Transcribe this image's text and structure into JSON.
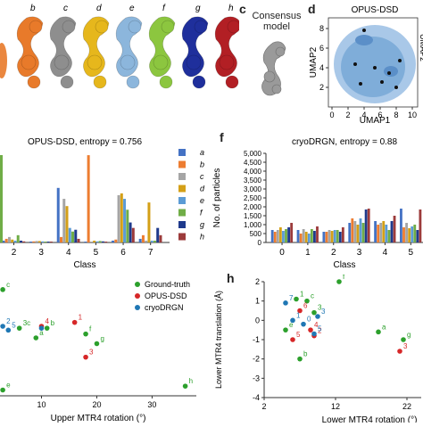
{
  "panel_labels": {
    "c": "c",
    "d": "d",
    "f": "f",
    "h": "h"
  },
  "maps": [
    {
      "letter": "b",
      "color": "#e87a2a"
    },
    {
      "letter": "c",
      "color": "#8e8e8e"
    },
    {
      "letter": "d",
      "color": "#e6b71c"
    },
    {
      "letter": "e",
      "color": "#8cb6dc"
    },
    {
      "letter": "f",
      "color": "#8cc63f"
    },
    {
      "letter": "g",
      "color": "#1f2f9c"
    },
    {
      "letter": "h",
      "color": "#b21f24"
    }
  ],
  "consensus": {
    "label": "Consensus\nmodel"
  },
  "umap": {
    "title": "OPUS-DSD",
    "xlabel": "UMAP1",
    "ylabel": "UMAP2",
    "ylabel_right": "UMAP2",
    "xticks": [
      "0",
      "2",
      "4",
      "6",
      "8",
      "10"
    ],
    "yticks": [
      "8",
      "6",
      "4",
      "2"
    ]
  },
  "legend_hist": [
    "a",
    "b",
    "c",
    "d",
    "e",
    "f",
    "g",
    "h"
  ],
  "legend_scatter": [
    "Ground-truth",
    "OPUS-DSD",
    "cryoDRGN"
  ],
  "chart_data": [
    {
      "type": "bar",
      "title": "OPUS-DSD, entropy = 0.756",
      "xlabel": "Class",
      "categories": [
        "2",
        "3",
        "4",
        "5",
        "6",
        "7"
      ],
      "series": [
        {
          "name": "a",
          "color": "#4472c4",
          "values": [
            5,
            1,
            150,
            2,
            5,
            10
          ]
        },
        {
          "name": "b",
          "color": "#ed7d31",
          "values": [
            10,
            3,
            15,
            240,
            8,
            20
          ]
        },
        {
          "name": "c",
          "color": "#a5a5a5",
          "values": [
            15,
            4,
            120,
            2,
            130,
            5
          ]
        },
        {
          "name": "d",
          "color": "#d4a017",
          "values": [
            8,
            4,
            100,
            5,
            135,
            110
          ]
        },
        {
          "name": "e",
          "color": "#5b9bd5",
          "values": [
            5,
            3,
            40,
            3,
            120,
            5
          ]
        },
        {
          "name": "f",
          "color": "#70ad47",
          "values": [
            20,
            2,
            30,
            4,
            90,
            5
          ]
        },
        {
          "name": "g",
          "color": "#1f3a8c",
          "values": [
            5,
            2,
            35,
            3,
            55,
            40
          ]
        },
        {
          "name": "h",
          "color": "#9c3b3b",
          "values": [
            3,
            1,
            10,
            2,
            40,
            20
          ]
        }
      ]
    },
    {
      "type": "bar",
      "title": "cryoDRGN, entropy = 0.88",
      "xlabel": "Class",
      "ylabel": "No. of particles",
      "ylim": [
        0,
        5000
      ],
      "yticks": [
        "0",
        "500",
        "1,000",
        "1,500",
        "2,000",
        "2,500",
        "3,000",
        "3,500",
        "4,000",
        "4,500",
        "5,000"
      ],
      "categories": [
        "0",
        "1",
        "2",
        "3",
        "4",
        "5"
      ],
      "series": [
        {
          "name": "a",
          "color": "#4472c4",
          "values": [
            700,
            700,
            600,
            1100,
            1200,
            1900
          ]
        },
        {
          "name": "b",
          "color": "#ed7d31",
          "values": [
            600,
            500,
            600,
            1350,
            1000,
            850
          ]
        },
        {
          "name": "c",
          "color": "#a5a5a5",
          "values": [
            700,
            750,
            700,
            1200,
            1100,
            1100
          ]
        },
        {
          "name": "d",
          "color": "#d4a017",
          "values": [
            850,
            600,
            650,
            1000,
            1200,
            800
          ]
        },
        {
          "name": "e",
          "color": "#5b9bd5",
          "values": [
            650,
            500,
            700,
            1350,
            1000,
            900
          ]
        },
        {
          "name": "f",
          "color": "#70ad47",
          "values": [
            750,
            750,
            700,
            1100,
            700,
            1000
          ]
        },
        {
          "name": "g",
          "color": "#1f3a8c",
          "values": [
            850,
            650,
            600,
            1850,
            1200,
            700
          ]
        },
        {
          "name": "h",
          "color": "#9c3b3b",
          "values": [
            1100,
            900,
            850,
            1900,
            1500,
            1850
          ]
        }
      ]
    },
    {
      "type": "scatter",
      "xlabel": "Upper MTR4 rotation (°)",
      "xlim": [
        2.5,
        38
      ],
      "ylim": [
        -3.5,
        2.5
      ],
      "xticks": [
        "10",
        "20",
        "30"
      ],
      "series": [
        {
          "name": "Ground-truth",
          "color": "#2ca02c",
          "points": [
            {
              "x": 3,
              "y": 2.0,
              "label": "c"
            },
            {
              "x": 6,
              "y": 0,
              "label": "3c"
            },
            {
              "x": 9,
              "y": -0.5,
              "label": "a"
            },
            {
              "x": 11,
              "y": 0,
              "label": "b"
            },
            {
              "x": 18,
              "y": -0.3,
              "label": "f"
            },
            {
              "x": 20,
              "y": -0.8,
              "label": "g"
            },
            {
              "x": 36,
              "y": -3.0,
              "label": "h"
            },
            {
              "x": 3,
              "y": -3.2,
              "label": "e"
            }
          ]
        },
        {
          "name": "OPUS-DSD",
          "color": "#d62728",
          "points": [
            {
              "x": 10,
              "y": 0.1,
              "label": "4"
            },
            {
              "x": 16,
              "y": 0.3,
              "label": "1"
            },
            {
              "x": 18,
              "y": -1.5,
              "label": "3"
            }
          ]
        },
        {
          "name": "cryoDRGN",
          "color": "#1f77b4",
          "points": [
            {
              "x": 3,
              "y": 0.1,
              "label": "2"
            },
            {
              "x": 4,
              "y": -0.1,
              "label": "5"
            },
            {
              "x": 10,
              "y": 0.0,
              "label": ""
            }
          ]
        }
      ]
    },
    {
      "type": "scatter",
      "xlabel": "Lower MTR4 rotation (°)",
      "ylabel": "Lower MTR4 translation (Å)",
      "xlim": [
        2,
        24
      ],
      "ylim": [
        -4,
        2
      ],
      "xticks": [
        "2",
        "12",
        "22"
      ],
      "yticks": [
        "2",
        "1",
        "0",
        "-1",
        "-2",
        "-3",
        "-4"
      ],
      "series": [
        {
          "name": "Ground-truth",
          "color": "#2ca02c",
          "points": [
            {
              "x": 12.5,
              "y": 2.0,
              "label": "f"
            },
            {
              "x": 8,
              "y": 1.0,
              "label": "c"
            },
            {
              "x": 6.5,
              "y": 1.1,
              "label": "1"
            },
            {
              "x": 9,
              "y": 0.4,
              "label": "3"
            },
            {
              "x": 7,
              "y": -2.0,
              "label": "b"
            },
            {
              "x": 18,
              "y": -0.6,
              "label": "a"
            },
            {
              "x": 21.5,
              "y": -1.0,
              "label": "g"
            },
            {
              "x": 5,
              "y": -0.5,
              "label": "e"
            }
          ]
        },
        {
          "name": "OPUS-DSD",
          "color": "#d62728",
          "points": [
            {
              "x": 7,
              "y": 0.5,
              "label": "6"
            },
            {
              "x": 8.5,
              "y": -0.5,
              "label": "4"
            },
            {
              "x": 6,
              "y": -1.0,
              "label": "5"
            },
            {
              "x": 9,
              "y": -0.8,
              "label": "2"
            },
            {
              "x": 21,
              "y": -1.6,
              "label": "3"
            }
          ]
        },
        {
          "name": "cryoDRGN",
          "color": "#1f77b4",
          "points": [
            {
              "x": 5,
              "y": 0.9,
              "label": "7"
            },
            {
              "x": 6,
              "y": 0.0,
              "label": "1"
            },
            {
              "x": 9.5,
              "y": 0.2,
              "label": "3"
            },
            {
              "x": 7.5,
              "y": -0.2,
              "label": "0"
            },
            {
              "x": 9,
              "y": -0.7,
              "label": "5"
            }
          ]
        }
      ]
    }
  ]
}
